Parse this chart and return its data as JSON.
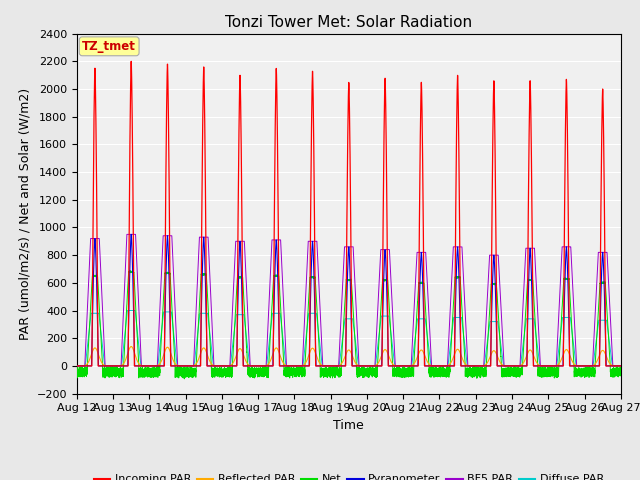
{
  "title": "Tonzi Tower Met: Solar Radiation",
  "ylabel": "PAR (umol/m2/s) / Net and Solar (W/m2)",
  "xlabel": "Time",
  "ylim": [
    -200,
    2400
  ],
  "yticks": [
    -200,
    0,
    200,
    400,
    600,
    800,
    1000,
    1200,
    1400,
    1600,
    1800,
    2000,
    2200,
    2400
  ],
  "x_labels": [
    "Aug 12",
    "Aug 13",
    "Aug 14",
    "Aug 15",
    "Aug 16",
    "Aug 17",
    "Aug 18",
    "Aug 19",
    "Aug 20",
    "Aug 21",
    "Aug 22",
    "Aug 23",
    "Aug 24",
    "Aug 25",
    "Aug 26",
    "Aug 27"
  ],
  "n_days": 16,
  "colors": {
    "incoming_par": "#ff0000",
    "reflected_par": "#ffaa00",
    "net": "#00dd00",
    "pyranometer": "#0000dd",
    "bf5_par": "#9900cc",
    "diffuse_par": "#00cccc"
  },
  "legend_labels": [
    "Incoming PAR",
    "Reflected PAR",
    "Net",
    "Pyranometer",
    "BF5 PAR",
    "Diffuse PAR"
  ],
  "annotation_text": "TZ_tmet",
  "annotation_color": "#cc0000",
  "annotation_bg": "#ffff99",
  "background_color": "#e8e8e8",
  "plot_bg": "#f0f0f0",
  "title_fontsize": 11,
  "axis_fontsize": 9,
  "tick_fontsize": 8
}
